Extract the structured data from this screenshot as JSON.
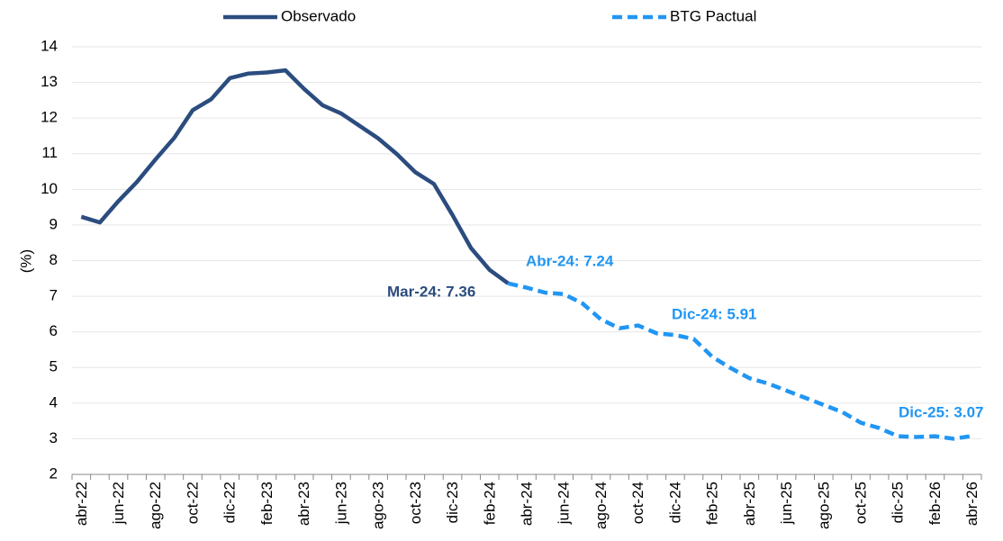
{
  "chart_data": {
    "type": "line",
    "y_label": "(%)",
    "categories": [
      "abr-22",
      null,
      "jun-22",
      null,
      "ago-22",
      null,
      "oct-22",
      null,
      "dic-22",
      null,
      "feb-23",
      null,
      "abr-23",
      null,
      "jun-23",
      null,
      "ago-23",
      null,
      "oct-23",
      null,
      "dic-23",
      null,
      "feb-24",
      null,
      "abr-24",
      null,
      "jun-24",
      null,
      "ago-24",
      null,
      "oct-24",
      null,
      "dic-24",
      null,
      "feb-25",
      null,
      "abr-25",
      null,
      "jun-25",
      null,
      "ago-25",
      null,
      "oct-25",
      null,
      "dic-25",
      null,
      "feb-26",
      null,
      "abr-26"
    ],
    "series": [
      {
        "name": "Observado",
        "color": "#2b4c7e",
        "dashed": false,
        "values": [
          9.23,
          9.07,
          9.67,
          10.21,
          10.84,
          11.44,
          12.22,
          12.53,
          13.12,
          13.25,
          13.28,
          13.34,
          12.82,
          12.36,
          12.13,
          11.78,
          11.43,
          10.99,
          10.48,
          10.15,
          9.28,
          8.35,
          7.74,
          7.36,
          null,
          null,
          null,
          null,
          null,
          null,
          null,
          null,
          null,
          null,
          null,
          null,
          null,
          null,
          null,
          null,
          null,
          null,
          null,
          null,
          null,
          null,
          null,
          null,
          null
        ]
      },
      {
        "name": "BTG Pactual",
        "color": "#2196f3",
        "dashed": true,
        "values": [
          null,
          null,
          null,
          null,
          null,
          null,
          null,
          null,
          null,
          null,
          null,
          null,
          null,
          null,
          null,
          null,
          null,
          null,
          null,
          null,
          null,
          null,
          null,
          7.36,
          7.24,
          7.1,
          7.06,
          6.8,
          6.35,
          6.1,
          6.18,
          5.96,
          5.91,
          5.8,
          5.3,
          4.98,
          4.7,
          4.55,
          4.35,
          4.15,
          3.95,
          3.75,
          3.45,
          3.3,
          3.07,
          3.05,
          3.07,
          3.0,
          3.08
        ]
      }
    ],
    "annotations": [
      {
        "text": "Mar-24: 7.36",
        "color": "#2b4c7e"
      },
      {
        "text": "Abr-24: 7.24",
        "color": "#2196f3"
      },
      {
        "text": "Dic-24: 5.91",
        "color": "#2196f3"
      },
      {
        "text": "Dic-25: 3.07",
        "color": "#2196f3"
      }
    ],
    "ylim": [
      2,
      14
    ],
    "yticks": [
      2,
      3,
      4,
      5,
      6,
      7,
      8,
      9,
      10,
      11,
      12,
      13,
      14
    ],
    "grid": true
  }
}
